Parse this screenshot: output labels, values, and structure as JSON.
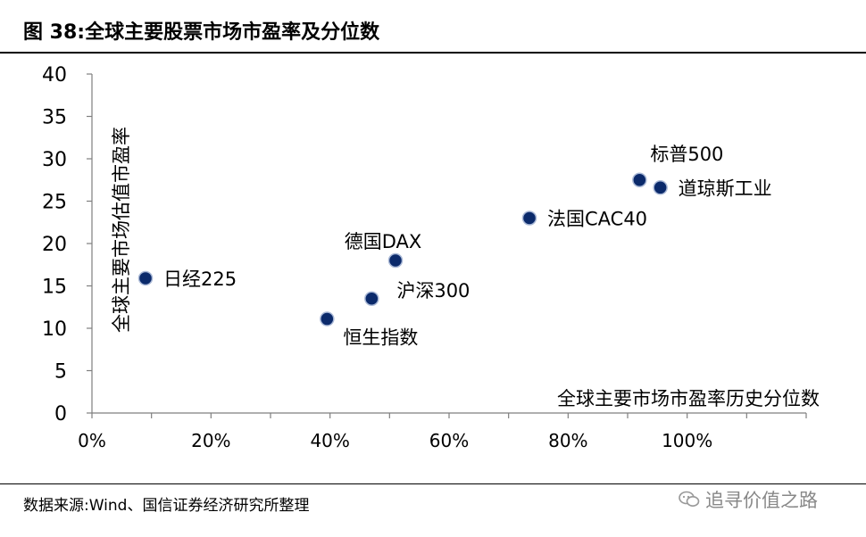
{
  "figure": {
    "title": "图 38:全球主要股票市场市盈率及分位数",
    "source": "数据来源:Wind、国信证券经济研究所整理",
    "watermark": "追寻价值之路",
    "watermark_icon": "wechat-icon"
  },
  "chart_data": {
    "type": "scatter",
    "title": "",
    "xlabel": "全球主要市场市盈率历史分位数",
    "ylabel": "全球主要市场估值市盈率",
    "xlim": [
      0,
      1.2
    ],
    "ylim": [
      0,
      40
    ],
    "x_ticks": [
      0,
      0.2,
      0.4,
      0.6,
      0.8,
      1.0
    ],
    "x_tick_labels": [
      "0%",
      "20%",
      "40%",
      "60%",
      "80%",
      "100%"
    ],
    "y_ticks": [
      0,
      5,
      10,
      15,
      20,
      25,
      30,
      35,
      40
    ],
    "y_tick_labels": [
      "0",
      "5",
      "10",
      "15",
      "20",
      "25",
      "30",
      "35",
      "40"
    ],
    "grid": false,
    "marker_color": "#0b2a6b",
    "points": [
      {
        "label": "日经225",
        "x": 0.09,
        "y": 15.9,
        "label_pos": "right"
      },
      {
        "label": "恒生指数",
        "x": 0.395,
        "y": 11.1,
        "label_pos": "below-right"
      },
      {
        "label": "沪深300",
        "x": 0.47,
        "y": 13.5,
        "label_pos": "upper-right"
      },
      {
        "label": "德国DAX",
        "x": 0.51,
        "y": 18.0,
        "label_pos": "above"
      },
      {
        "label": "法国CAC40",
        "x": 0.735,
        "y": 23.0,
        "label_pos": "right"
      },
      {
        "label": "标普500",
        "x": 0.92,
        "y": 27.5,
        "label_pos": "above-right"
      },
      {
        "label": "道琼斯工业",
        "x": 0.955,
        "y": 26.6,
        "label_pos": "right"
      }
    ]
  }
}
